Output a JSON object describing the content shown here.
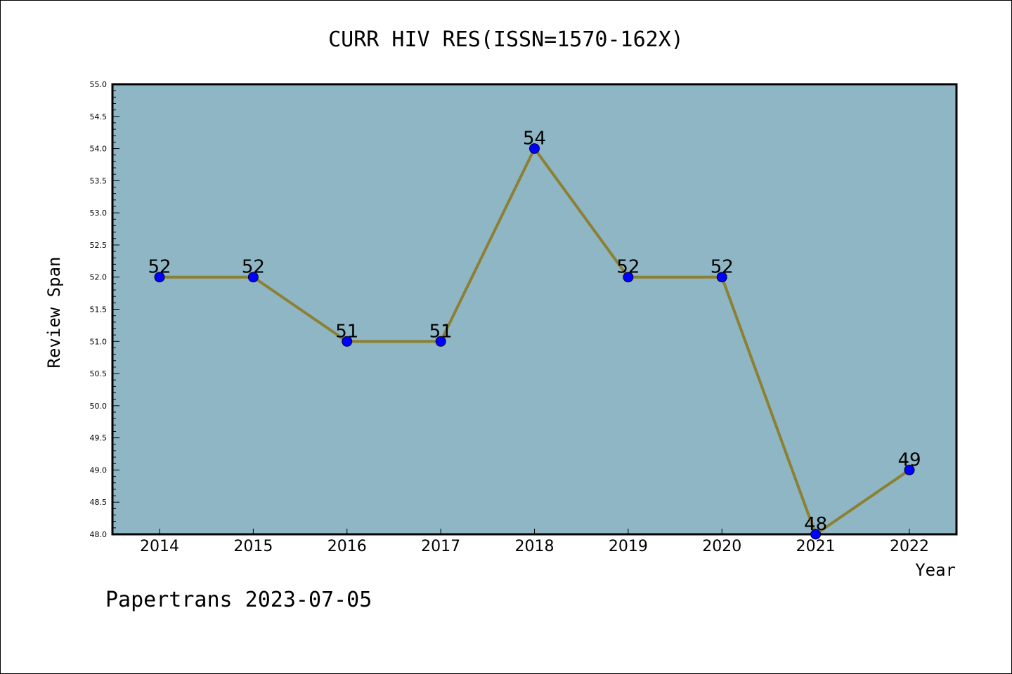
{
  "chart_data": {
    "type": "line",
    "title": "CURR HIV RES(ISSN=1570-162X)",
    "xlabel": "Year",
    "ylabel": "Review Span",
    "x": [
      "2014",
      "2015",
      "2016",
      "2017",
      "2018",
      "2019",
      "2020",
      "2021",
      "2022"
    ],
    "series": [
      {
        "values": [
          52,
          52,
          51,
          51,
          54,
          52,
          52,
          48,
          49
        ]
      }
    ],
    "data_labels": [
      "52",
      "52",
      "51",
      "51",
      "54",
      "52",
      "52",
      "48",
      "49"
    ],
    "ylim": [
      48.0,
      55.0
    ],
    "yticks": [
      "48.0",
      "48.5",
      "49.0",
      "49.5",
      "50.0",
      "50.5",
      "51.0",
      "51.5",
      "52.0",
      "52.5",
      "53.0",
      "53.5",
      "54.0",
      "54.5",
      "55.0"
    ],
    "grid": false,
    "legend": "none",
    "colors": {
      "plot_background": "#8fb6c4",
      "line": "#8c8034",
      "marker": "#0000ff"
    }
  },
  "footer": {
    "text": "Papertrans 2023-07-05"
  }
}
